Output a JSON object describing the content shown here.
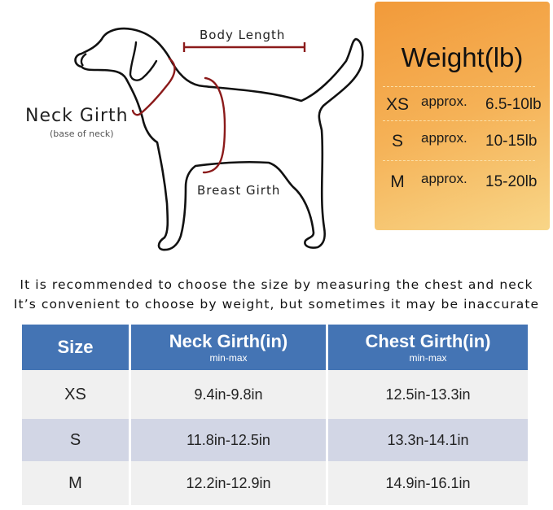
{
  "diagram": {
    "body_length": "Body Length",
    "neck_girth": "Neck Girth",
    "neck_girth_note": "(base of neck)",
    "breast_girth": "Breast Girth",
    "outline_color": "#111111",
    "measure_color": "#8b1a1a"
  },
  "weight": {
    "title": "Weight(lb)",
    "rows": [
      {
        "size": "XS",
        "approx": "approx.",
        "range": "6.5-10lb"
      },
      {
        "size": "S",
        "approx": "approx.",
        "range": "10-15lb"
      },
      {
        "size": "M",
        "approx": "approx.",
        "range": "15-20lb"
      }
    ]
  },
  "notes": [
    "It is recommended to choose the size by measuring the chest and neck",
    "It’s convenient to choose by weight, but sometimes it may be inaccurate"
  ],
  "table": {
    "headers": [
      {
        "label": "Size",
        "sub": ""
      },
      {
        "label": "Neck Girth(in)",
        "sub": "min-max"
      },
      {
        "label": "Chest Girth(in)",
        "sub": "min-max"
      }
    ],
    "rows": [
      [
        "XS",
        "9.4in-9.8in",
        "12.5in-13.3in"
      ],
      [
        "S",
        "11.8in-12.5in",
        "13.3n-14.1in"
      ],
      [
        "M",
        "12.2in-12.9in",
        "14.9in-16.1in"
      ]
    ],
    "header_color": "#4474b4"
  }
}
